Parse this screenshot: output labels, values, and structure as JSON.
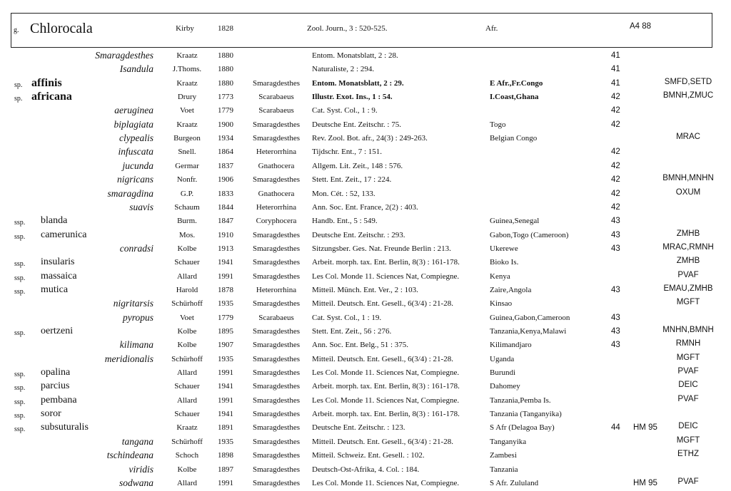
{
  "header": {
    "rank": "g.",
    "name": "Chlorocala",
    "author": "Kirby",
    "year": 1828,
    "ref": "Zool. Journ., 3 : 520-525.",
    "dist": "Afr.",
    "code": "A4 88"
  },
  "rows": [
    {
      "name": "Smaragdesthes",
      "author": "Kraatz",
      "year": 1880,
      "ref": "Entom. Monatsblatt, 2 : 28.",
      "page": 41
    },
    {
      "name": "Isandula",
      "author": "J.Thoms.",
      "year": 1880,
      "ref": "Naturaliste, 2 : 294.",
      "page": 41
    },
    {
      "rank": "sp.",
      "name": "affinis",
      "author": "Kraatz",
      "year": 1880,
      "genus": "Smaragdesthes",
      "ref": "Entom. Monatsblatt, 2 : 29.",
      "dist": "E Afr.,Fr.Congo",
      "page": 41,
      "coll": "SMFD,SETD"
    },
    {
      "rank": "sp.",
      "name": "africana",
      "author": "Drury",
      "year": 1773,
      "genus": "Scarabaeus",
      "ref": "Illustr. Exot. Ins., 1 : 54.",
      "dist": "I.Coast,Ghana",
      "page": 42,
      "coll": "BMNH,ZMUC"
    },
    {
      "name": "aeruginea",
      "author": "Voet",
      "year": 1779,
      "genus": "Scarabaeus",
      "ref": "Cat. Syst. Col., 1 : 9.",
      "page": 42
    },
    {
      "name": "biplagiata",
      "author": "Kraatz",
      "year": 1900,
      "genus": "Smaragdesthes",
      "ref": "Deutsche Ent. Zeitschr. : 75.",
      "dist": "Togo",
      "page": 42
    },
    {
      "name": "clypealis",
      "author": "Burgeon",
      "year": 1934,
      "genus": "Smaragdesthes",
      "ref": "Rev. Zool. Bot. afr., 24(3) : 249-263.",
      "dist": "Belgian Congo",
      "coll": "MRAC"
    },
    {
      "name": "infuscata",
      "author": "Snell.",
      "year": 1864,
      "genus": "Heterorrhina",
      "ref": "Tijdschr. Ent., 7 : 151.",
      "page": 42
    },
    {
      "name": "jucunda",
      "author": "Germar",
      "year": 1837,
      "genus": "Gnathocera",
      "ref": "Allgem. Lit. Zeit., 148 : 576.",
      "page": 42
    },
    {
      "name": "nigricans",
      "author": "Nonfr.",
      "year": 1906,
      "genus": "Smaragdesthes",
      "ref": "Stett. Ent. Zeit., 17 : 224.",
      "page": 42,
      "coll": "BMNH,MNHN"
    },
    {
      "name": "smaragdina",
      "author": "G.P.",
      "year": 1833,
      "genus": "Gnathocera",
      "ref": "Mon. Cét. : 52, 133.",
      "page": 42,
      "coll": "OXUM"
    },
    {
      "name": "suavis",
      "author": "Schaum",
      "year": 1844,
      "genus": "Heterorrhina",
      "ref": "Ann. Soc. Ent. France, 2(2) : 403.",
      "page": 42
    },
    {
      "rank": "ssp.",
      "name": "blanda",
      "author": "Burm.",
      "year": 1847,
      "genus": "Coryphocera",
      "ref": "Handb. Ent., 5 : 549.",
      "dist": "Guinea,Senegal",
      "page": 43
    },
    {
      "rank": "ssp.",
      "name": "camerunica",
      "author": "Mos.",
      "year": 1910,
      "genus": "Smaragdesthes",
      "ref": "Deutsche Ent. Zeitschr. : 293.",
      "dist": "Gabon,Togo (Cameroon)",
      "page": 43,
      "coll": "ZMHB"
    },
    {
      "name": "conradsi",
      "author": "Kolbe",
      "year": 1913,
      "genus": "Smaragdesthes",
      "ref": "Sitzungsber. Ges. Nat. Freunde Berlin : 213.",
      "dist": "Ukerewe",
      "page": 43,
      "coll": "MRAC,RMNH"
    },
    {
      "rank": "ssp.",
      "name": "insularis",
      "author": "Schauer",
      "year": 1941,
      "genus": "Smaragdesthes",
      "ref": "Arbeit. morph. tax. Ent. Berlin, 8(3) : 161-178.",
      "dist": "Bioko Is.",
      "coll": "ZMHB"
    },
    {
      "rank": "ssp.",
      "name": "massaica",
      "author": "Allard",
      "year": 1991,
      "genus": "Smaragdesthes",
      "ref": "Les Col. Monde 11. Sciences Nat, Compiegne.",
      "dist": "Kenya",
      "coll": "PVAF"
    },
    {
      "rank": "ssp.",
      "name": "mutica",
      "author": "Harold",
      "year": 1878,
      "genus": "Heterorrhina",
      "ref": "Mitteil. Münch. Ent. Ver., 2 : 103.",
      "dist": "Zaire,Angola",
      "page": 43,
      "coll": "EMAU,ZMHB"
    },
    {
      "name": "nigritarsis",
      "author": "Schürhoff",
      "year": 1935,
      "genus": "Smaragdesthes",
      "ref": "Mitteil. Deutsch. Ent. Gesell., 6(3/4) : 21-28.",
      "dist": "Kinsao",
      "coll": "MGFT"
    },
    {
      "name": "pyropus",
      "author": "Voet",
      "year": 1779,
      "genus": "Scarabaeus",
      "ref": "Cat. Syst. Col., 1 : 19.",
      "dist": "Guinea,Gabon,Cameroon",
      "page": 43
    },
    {
      "rank": "ssp.",
      "name": "oertzeni",
      "author": "Kolbe",
      "year": 1895,
      "genus": "Smaragdesthes",
      "ref": "Stett. Ent. Zeit., 56 : 276.",
      "dist": "Tanzania,Kenya,Malawi",
      "page": 43,
      "coll": "MNHN,BMNH"
    },
    {
      "name": "kilimana",
      "author": "Kolbe",
      "year": 1907,
      "genus": "Smaragdesthes",
      "ref": "Ann. Soc. Ent. Belg., 51 : 375.",
      "dist": "Kilimandjaro",
      "page": 43,
      "coll": "RMNH"
    },
    {
      "name": "meridionalis",
      "author": "Schürhoff",
      "year": 1935,
      "genus": "Smaragdesthes",
      "ref": "Mitteil. Deutsch. Ent. Gesell., 6(3/4) : 21-28.",
      "dist": "Uganda",
      "coll": "MGFT"
    },
    {
      "rank": "ssp.",
      "name": "opalina",
      "author": "Allard",
      "year": 1991,
      "genus": "Smaragdesthes",
      "ref": "Les Col. Monde 11. Sciences Nat, Compiegne.",
      "dist": "Burundi",
      "coll": "PVAF"
    },
    {
      "rank": "ssp.",
      "name": "parcius",
      "author": "Schauer",
      "year": 1941,
      "genus": "Smaragdesthes",
      "ref": "Arbeit. morph. tax. Ent. Berlin, 8(3) : 161-178.",
      "dist": "Dahomey",
      "coll": "DEIC"
    },
    {
      "rank": "ssp.",
      "name": "pembana",
      "author": "Allard",
      "year": 1991,
      "genus": "Smaragdesthes",
      "ref": "Les Col. Monde 11. Sciences Nat, Compiegne.",
      "dist": "Tanzania,Pemba Is.",
      "coll": "PVAF"
    },
    {
      "rank": "ssp.",
      "name": "soror",
      "author": "Schauer",
      "year": 1941,
      "genus": "Smaragdesthes",
      "ref": "Arbeit. morph. tax. Ent. Berlin, 8(3) : 161-178.",
      "dist": "Tanzania (Tanganyika)"
    },
    {
      "rank": "ssp.",
      "name": "subsuturalis",
      "author": "Kraatz",
      "year": 1891,
      "genus": "Smaragdesthes",
      "ref": "Deutsche Ent. Zeitschr. : 123.",
      "dist": "S Afr (Delagoa Bay)",
      "page": 44,
      "note": "HM 95",
      "coll": "DEIC"
    },
    {
      "name": "tangana",
      "author": "Schürhoff",
      "year": 1935,
      "genus": "Smaragdesthes",
      "ref": "Mitteil. Deutsch. Ent. Gesell., 6(3/4) : 21-28.",
      "dist": "Tanganyika",
      "coll": "MGFT"
    },
    {
      "name": "tschindeana",
      "author": "Schoch",
      "year": 1898,
      "genus": "Smaragdesthes",
      "ref": "Mitteil. Schweiz. Ent. Gesell. : 102.",
      "dist": "Zambesi",
      "coll": "ETHZ"
    },
    {
      "name": "viridis",
      "author": "Kolbe",
      "year": 1897,
      "genus": "Smaragdesthes",
      "ref": "Deutsch-Ost-Afrika, 4. Col. : 184.",
      "dist": "Tanzania"
    },
    {
      "name": "sodwana",
      "author": "Allard",
      "year": 1991,
      "genus": "Smaragdesthes",
      "ref": "Les Col. Monde 11. Sciences Nat, Compiegne.",
      "dist": "S Afr. Zululand",
      "note": "HM 95",
      "coll": "PVAF"
    }
  ]
}
